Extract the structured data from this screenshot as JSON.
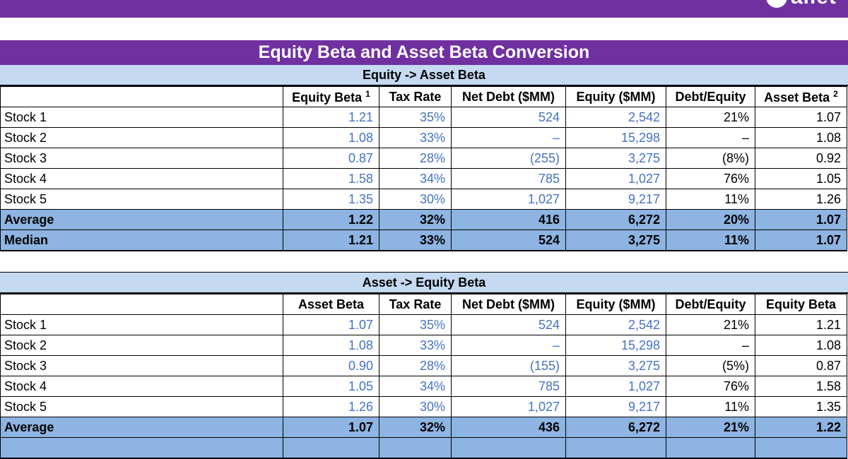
{
  "brand": {
    "logo_text_fragment": "allet"
  },
  "title": "Equity Beta and Asset Beta Conversion",
  "colors": {
    "brand_purple": "#7030A0",
    "section_band_blue": "#C5D9F1",
    "summary_row_blue": "#8DB4E2",
    "input_value_blue": "#4472C4",
    "computed_value_black": "#000000"
  },
  "tables": [
    {
      "section": "Equity -> Asset Beta",
      "columns": [
        {
          "label": "",
          "sup": ""
        },
        {
          "label": "Equity Beta ",
          "sup": "1"
        },
        {
          "label": "Tax Rate",
          "sup": ""
        },
        {
          "label": "Net Debt ($MM)",
          "sup": ""
        },
        {
          "label": "Equity ($MM)",
          "sup": ""
        },
        {
          "label": "Debt/Equity",
          "sup": ""
        },
        {
          "label": "Asset Beta ",
          "sup": "2"
        }
      ],
      "rows": [
        {
          "label": "Stock 1",
          "type": "stock",
          "cells": [
            {
              "v": "1.21",
              "blue": true
            },
            {
              "v": "35%",
              "blue": true
            },
            {
              "v": "524",
              "blue": true
            },
            {
              "v": "2,542",
              "blue": true
            },
            {
              "v": "21%",
              "blue": false
            },
            {
              "v": "1.07",
              "blue": false
            }
          ]
        },
        {
          "label": "Stock 2",
          "type": "stock",
          "cells": [
            {
              "v": "1.08",
              "blue": true
            },
            {
              "v": "33%",
              "blue": true
            },
            {
              "v": "–",
              "blue": true
            },
            {
              "v": "15,298",
              "blue": true
            },
            {
              "v": "–",
              "blue": false
            },
            {
              "v": "1.08",
              "blue": false
            }
          ]
        },
        {
          "label": "Stock 3",
          "type": "stock",
          "cells": [
            {
              "v": "0.87",
              "blue": true
            },
            {
              "v": "28%",
              "blue": true
            },
            {
              "v": "(255)",
              "blue": true
            },
            {
              "v": "3,275",
              "blue": true
            },
            {
              "v": "(8%)",
              "blue": false
            },
            {
              "v": "0.92",
              "blue": false
            }
          ]
        },
        {
          "label": "Stock 4",
          "type": "stock",
          "cells": [
            {
              "v": "1.58",
              "blue": true
            },
            {
              "v": "34%",
              "blue": true
            },
            {
              "v": "785",
              "blue": true
            },
            {
              "v": "1,027",
              "blue": true
            },
            {
              "v": "76%",
              "blue": false
            },
            {
              "v": "1.05",
              "blue": false
            }
          ]
        },
        {
          "label": "Stock 5",
          "type": "stock",
          "cells": [
            {
              "v": "1.35",
              "blue": true
            },
            {
              "v": "30%",
              "blue": true
            },
            {
              "v": "1,027",
              "blue": true
            },
            {
              "v": "9,217",
              "blue": true
            },
            {
              "v": "11%",
              "blue": false
            },
            {
              "v": "1.26",
              "blue": false
            }
          ]
        },
        {
          "label": "Average",
          "type": "summary",
          "cells": [
            {
              "v": "1.22"
            },
            {
              "v": "32%"
            },
            {
              "v": "416"
            },
            {
              "v": "6,272"
            },
            {
              "v": "20%"
            },
            {
              "v": "1.07"
            }
          ]
        },
        {
          "label": "Median",
          "type": "summary",
          "cells": [
            {
              "v": "1.21"
            },
            {
              "v": "33%"
            },
            {
              "v": "524"
            },
            {
              "v": "3,275"
            },
            {
              "v": "11%"
            },
            {
              "v": "1.07"
            }
          ]
        }
      ]
    },
    {
      "section": "Asset -> Equity Beta",
      "columns": [
        {
          "label": "",
          "sup": ""
        },
        {
          "label": "Asset Beta",
          "sup": ""
        },
        {
          "label": "Tax Rate",
          "sup": ""
        },
        {
          "label": "Net Debt ($MM)",
          "sup": ""
        },
        {
          "label": "Equity ($MM)",
          "sup": ""
        },
        {
          "label": "Debt/Equity",
          "sup": ""
        },
        {
          "label": "Equity Beta",
          "sup": ""
        }
      ],
      "rows": [
        {
          "label": "Stock 1",
          "type": "stock",
          "cells": [
            {
              "v": "1.07",
              "blue": true
            },
            {
              "v": "35%",
              "blue": true
            },
            {
              "v": "524",
              "blue": true
            },
            {
              "v": "2,542",
              "blue": true
            },
            {
              "v": "21%",
              "blue": false
            },
            {
              "v": "1.21",
              "blue": false
            }
          ]
        },
        {
          "label": "Stock 2",
          "type": "stock",
          "cells": [
            {
              "v": "1.08",
              "blue": true
            },
            {
              "v": "33%",
              "blue": true
            },
            {
              "v": "–",
              "blue": true
            },
            {
              "v": "15,298",
              "blue": true
            },
            {
              "v": "–",
              "blue": false
            },
            {
              "v": "1.08",
              "blue": false
            }
          ]
        },
        {
          "label": "Stock 3",
          "type": "stock",
          "cells": [
            {
              "v": "0.90",
              "blue": true
            },
            {
              "v": "28%",
              "blue": true
            },
            {
              "v": "(155)",
              "blue": true
            },
            {
              "v": "3,275",
              "blue": true
            },
            {
              "v": "(5%)",
              "blue": false
            },
            {
              "v": "0.87",
              "blue": false
            }
          ]
        },
        {
          "label": "Stock 4",
          "type": "stock",
          "cells": [
            {
              "v": "1.05",
              "blue": true
            },
            {
              "v": "34%",
              "blue": true
            },
            {
              "v": "785",
              "blue": true
            },
            {
              "v": "1,027",
              "blue": true
            },
            {
              "v": "76%",
              "blue": false
            },
            {
              "v": "1.58",
              "blue": false
            }
          ]
        },
        {
          "label": "Stock 5",
          "type": "stock",
          "cells": [
            {
              "v": "1.26",
              "blue": true
            },
            {
              "v": "30%",
              "blue": true
            },
            {
              "v": "1,027",
              "blue": true
            },
            {
              "v": "9,217",
              "blue": true
            },
            {
              "v": "11%",
              "blue": false
            },
            {
              "v": "1.35",
              "blue": false
            }
          ]
        },
        {
          "label": "Average",
          "type": "summary",
          "cells": [
            {
              "v": "1.07"
            },
            {
              "v": "32%"
            },
            {
              "v": "436"
            },
            {
              "v": "6,272"
            },
            {
              "v": "21%"
            },
            {
              "v": "1.22"
            }
          ]
        },
        {
          "label": "",
          "type": "summary",
          "clipped": true,
          "cells": [
            {
              "v": ""
            },
            {
              "v": ""
            },
            {
              "v": ""
            },
            {
              "v": ""
            },
            {
              "v": ""
            },
            {
              "v": ""
            }
          ]
        }
      ]
    }
  ]
}
